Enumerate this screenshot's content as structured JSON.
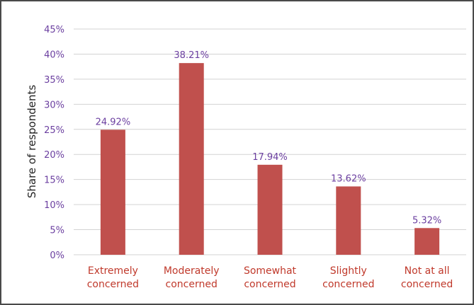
{
  "chart_data": {
    "type": "bar",
    "title": "",
    "xlabel": "",
    "ylabel": "Share of respondents",
    "categories": [
      [
        "Extremely",
        "concerned"
      ],
      [
        "Moderately",
        "concerned"
      ],
      [
        "Somewhat",
        "concerned"
      ],
      [
        "Slightly",
        "concerned"
      ],
      [
        "Not at all",
        "concerned"
      ]
    ],
    "values": [
      24.92,
      38.21,
      17.94,
      13.62,
      5.32
    ],
    "value_labels": [
      "24.92%",
      "38.21%",
      "17.94%",
      "13.62%",
      "5.32%"
    ],
    "ylim": [
      0,
      45
    ],
    "yticks": [
      0,
      5,
      10,
      15,
      20,
      25,
      30,
      35,
      40,
      45
    ],
    "ytick_labels": [
      "0%",
      "5%",
      "10%",
      "15%",
      "20%",
      "25%",
      "30%",
      "35%",
      "40%",
      "45%"
    ],
    "grid": true,
    "legend": "none"
  },
  "colors": {
    "bar": "#c0504d",
    "grid": "#d3d3d3",
    "tick_text": "#6b3fa0",
    "category_text": "#c0392b"
  }
}
